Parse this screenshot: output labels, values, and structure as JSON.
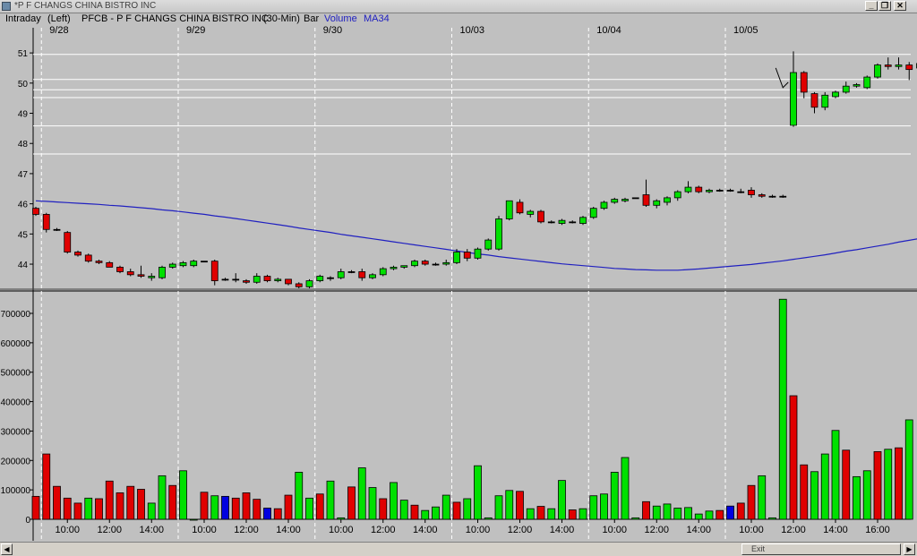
{
  "window": {
    "title": "*P F CHANGS CHINA BISTRO INC",
    "minimize_glyph": "_",
    "restore_glyph": "❐",
    "close_glyph": "✕"
  },
  "infobar": {
    "mode": "Intraday",
    "axis_side": "(Left)",
    "symbol_desc": "PFCB - P F CHANGS CHINA BISTRO INC",
    "interval": "(30-Min)",
    "style": "Bar",
    "volume_label": "Volume",
    "ma_label": "MA34"
  },
  "scrollbar": {
    "left_arrow": "◀",
    "right_arrow": "▶",
    "thumb_text": "Exit"
  },
  "colors": {
    "background": "#c0c0c0",
    "up": "#00e000",
    "down": "#e00000",
    "neutral": "#0000e0",
    "ma_line": "#2020c0",
    "hline": "#ffffff"
  },
  "chart_data": [
    {
      "type": "candlestick",
      "title": "",
      "ylim": [
        43.2,
        51.3
      ],
      "yticks": [
        44,
        45,
        46,
        47,
        48,
        49,
        50,
        51
      ],
      "ytick_labels": [
        "44",
        "45",
        "46",
        "47",
        "48",
        "49",
        "50",
        "51"
      ],
      "grid": false,
      "date_labels": [
        {
          "label": "9/28",
          "bar": 1
        },
        {
          "label": "9/29",
          "bar": 14
        },
        {
          "label": "9/30",
          "bar": 27
        },
        {
          "label": "10/03",
          "bar": 40
        },
        {
          "label": "10/04",
          "bar": 53
        },
        {
          "label": "10/05",
          "bar": 66
        }
      ],
      "horizontal_levels": [
        50.95,
        50.12,
        49.78,
        49.52,
        48.58,
        47.65
      ],
      "annotation": {
        "type": "arrow",
        "text": "",
        "bar": 71,
        "price": 49.85
      },
      "bars": [
        {
          "o": 45.85,
          "h": 45.9,
          "l": 45.6,
          "c": 45.65
        },
        {
          "o": 45.65,
          "h": 45.7,
          "l": 45.05,
          "c": 45.15
        },
        {
          "o": 45.15,
          "h": 45.2,
          "l": 45.1,
          "c": 45.15
        },
        {
          "o": 45.05,
          "h": 45.1,
          "l": 44.35,
          "c": 44.4
        },
        {
          "o": 44.4,
          "h": 44.45,
          "l": 44.25,
          "c": 44.3
        },
        {
          "o": 44.3,
          "h": 44.35,
          "l": 44.05,
          "c": 44.1
        },
        {
          "o": 44.1,
          "h": 44.15,
          "l": 44.0,
          "c": 44.05
        },
        {
          "o": 44.05,
          "h": 44.1,
          "l": 43.9,
          "c": 43.9
        },
        {
          "o": 43.9,
          "h": 43.95,
          "l": 43.7,
          "c": 43.75
        },
        {
          "o": 43.75,
          "h": 43.85,
          "l": 43.6,
          "c": 43.65
        },
        {
          "o": 43.65,
          "h": 43.95,
          "l": 43.55,
          "c": 43.6
        },
        {
          "o": 43.55,
          "h": 43.7,
          "l": 43.45,
          "c": 43.6
        },
        {
          "o": 43.55,
          "h": 43.95,
          "l": 43.5,
          "c": 43.9
        },
        {
          "o": 43.9,
          "h": 44.05,
          "l": 43.85,
          "c": 44.0
        },
        {
          "o": 43.95,
          "h": 44.1,
          "l": 43.9,
          "c": 44.05
        },
        {
          "o": 43.95,
          "h": 44.15,
          "l": 43.9,
          "c": 44.1
        },
        {
          "o": 44.1,
          "h": 44.1,
          "l": 44.1,
          "c": 44.1
        },
        {
          "o": 44.1,
          "h": 44.15,
          "l": 43.3,
          "c": 43.45
        },
        {
          "o": 43.5,
          "h": 43.55,
          "l": 43.45,
          "c": 43.5
        },
        {
          "o": 43.5,
          "h": 43.7,
          "l": 43.4,
          "c": 43.5
        },
        {
          "o": 43.45,
          "h": 43.5,
          "l": 43.35,
          "c": 43.4
        },
        {
          "o": 43.4,
          "h": 43.7,
          "l": 43.35,
          "c": 43.6
        },
        {
          "o": 43.6,
          "h": 43.65,
          "l": 43.4,
          "c": 43.45
        },
        {
          "o": 43.45,
          "h": 43.55,
          "l": 43.4,
          "c": 43.5
        },
        {
          "o": 43.5,
          "h": 43.5,
          "l": 43.3,
          "c": 43.35
        },
        {
          "o": 43.35,
          "h": 43.4,
          "l": 43.2,
          "c": 43.25
        },
        {
          "o": 43.25,
          "h": 43.5,
          "l": 43.2,
          "c": 43.45
        },
        {
          "o": 43.45,
          "h": 43.65,
          "l": 43.4,
          "c": 43.6
        },
        {
          "o": 43.55,
          "h": 43.6,
          "l": 43.45,
          "c": 43.55
        },
        {
          "o": 43.55,
          "h": 43.85,
          "l": 43.5,
          "c": 43.75
        },
        {
          "o": 43.75,
          "h": 43.8,
          "l": 43.7,
          "c": 43.75
        },
        {
          "o": 43.75,
          "h": 43.85,
          "l": 43.45,
          "c": 43.55
        },
        {
          "o": 43.55,
          "h": 43.7,
          "l": 43.5,
          "c": 43.65
        },
        {
          "o": 43.65,
          "h": 43.9,
          "l": 43.6,
          "c": 43.85
        },
        {
          "o": 43.85,
          "h": 43.95,
          "l": 43.8,
          "c": 43.9
        },
        {
          "o": 43.9,
          "h": 43.95,
          "l": 43.85,
          "c": 43.95
        },
        {
          "o": 43.95,
          "h": 44.15,
          "l": 43.9,
          "c": 44.1
        },
        {
          "o": 44.1,
          "h": 44.15,
          "l": 43.95,
          "c": 44.0
        },
        {
          "o": 44.0,
          "h": 44.05,
          "l": 43.95,
          "c": 44.0
        },
        {
          "o": 44.0,
          "h": 44.15,
          "l": 43.95,
          "c": 44.05
        },
        {
          "o": 44.05,
          "h": 44.5,
          "l": 44.0,
          "c": 44.4
        },
        {
          "o": 44.4,
          "h": 44.5,
          "l": 44.1,
          "c": 44.2
        },
        {
          "o": 44.2,
          "h": 44.55,
          "l": 44.15,
          "c": 44.5
        },
        {
          "o": 44.5,
          "h": 44.85,
          "l": 44.45,
          "c": 44.8
        },
        {
          "o": 44.5,
          "h": 45.6,
          "l": 44.45,
          "c": 45.5
        },
        {
          "o": 45.5,
          "h": 46.1,
          "l": 45.45,
          "c": 46.1
        },
        {
          "o": 46.05,
          "h": 46.15,
          "l": 45.65,
          "c": 45.7
        },
        {
          "o": 45.65,
          "h": 45.8,
          "l": 45.55,
          "c": 45.75
        },
        {
          "o": 45.75,
          "h": 45.8,
          "l": 45.35,
          "c": 45.4
        },
        {
          "o": 45.4,
          "h": 45.45,
          "l": 45.35,
          "c": 45.4
        },
        {
          "o": 45.35,
          "h": 45.5,
          "l": 45.3,
          "c": 45.45
        },
        {
          "o": 45.4,
          "h": 45.45,
          "l": 45.35,
          "c": 45.4
        },
        {
          "o": 45.35,
          "h": 45.6,
          "l": 45.3,
          "c": 45.55
        },
        {
          "o": 45.55,
          "h": 45.9,
          "l": 45.5,
          "c": 45.85
        },
        {
          "o": 45.85,
          "h": 46.1,
          "l": 45.8,
          "c": 46.05
        },
        {
          "o": 46.05,
          "h": 46.2,
          "l": 46.0,
          "c": 46.15
        },
        {
          "o": 46.1,
          "h": 46.2,
          "l": 46.05,
          "c": 46.15
        },
        {
          "o": 46.2,
          "h": 46.2,
          "l": 46.2,
          "c": 46.2
        },
        {
          "o": 46.3,
          "h": 46.8,
          "l": 45.9,
          "c": 45.95
        },
        {
          "o": 45.95,
          "h": 46.15,
          "l": 45.85,
          "c": 46.1
        },
        {
          "o": 46.05,
          "h": 46.25,
          "l": 45.95,
          "c": 46.2
        },
        {
          "o": 46.2,
          "h": 46.45,
          "l": 46.1,
          "c": 46.4
        },
        {
          "o": 46.4,
          "h": 46.75,
          "l": 46.35,
          "c": 46.55
        },
        {
          "o": 46.55,
          "h": 46.6,
          "l": 46.35,
          "c": 46.4
        },
        {
          "o": 46.4,
          "h": 46.5,
          "l": 46.35,
          "c": 46.45
        },
        {
          "o": 46.45,
          "h": 46.5,
          "l": 46.4,
          "c": 46.45
        },
        {
          "o": 46.45,
          "h": 46.5,
          "l": 46.4,
          "c": 46.45
        },
        {
          "o": 46.4,
          "h": 46.5,
          "l": 46.35,
          "c": 46.4
        },
        {
          "o": 46.45,
          "h": 46.55,
          "l": 46.2,
          "c": 46.3
        },
        {
          "o": 46.3,
          "h": 46.35,
          "l": 46.2,
          "c": 46.25
        },
        {
          "o": 46.25,
          "h": 46.3,
          "l": 46.2,
          "c": 46.25
        },
        {
          "o": 46.25,
          "h": 46.3,
          "l": 46.2,
          "c": 46.25
        },
        {
          "o": 48.6,
          "h": 51.05,
          "l": 48.55,
          "c": 50.35
        },
        {
          "o": 50.35,
          "h": 50.4,
          "l": 49.5,
          "c": 49.7
        },
        {
          "o": 49.65,
          "h": 49.7,
          "l": 49.0,
          "c": 49.2
        },
        {
          "o": 49.2,
          "h": 49.7,
          "l": 49.1,
          "c": 49.6
        },
        {
          "o": 49.55,
          "h": 49.75,
          "l": 49.5,
          "c": 49.7
        },
        {
          "o": 49.7,
          "h": 50.05,
          "l": 49.65,
          "c": 49.9
        },
        {
          "o": 49.9,
          "h": 50.0,
          "l": 49.85,
          "c": 49.95
        },
        {
          "o": 49.85,
          "h": 50.25,
          "l": 49.8,
          "c": 50.2
        },
        {
          "o": 50.2,
          "h": 50.65,
          "l": 50.15,
          "c": 50.6
        },
        {
          "o": 50.6,
          "h": 50.85,
          "l": 50.45,
          "c": 50.55
        },
        {
          "o": 50.55,
          "h": 50.85,
          "l": 50.45,
          "c": 50.6
        },
        {
          "o": 50.6,
          "h": 50.7,
          "l": 50.1,
          "c": 50.45
        },
        {
          "o": 50.5,
          "h": 50.7,
          "l": 50.15,
          "c": 50.65
        },
        {
          "o": 50.65,
          "h": 50.65,
          "l": 50.65,
          "c": 50.65
        }
      ],
      "series": [
        {
          "type": "line",
          "values": [
            46.1,
            46.08,
            46.06,
            46.04,
            46.02,
            46.0,
            45.98,
            45.95,
            45.93,
            45.9,
            45.87,
            45.84,
            45.8,
            45.77,
            45.73,
            45.69,
            45.65,
            45.6,
            45.56,
            45.51,
            45.46,
            45.41,
            45.36,
            45.31,
            45.26,
            45.2,
            45.15,
            45.1,
            45.05,
            44.99,
            44.94,
            44.89,
            44.84,
            44.79,
            44.74,
            44.69,
            44.64,
            44.59,
            44.54,
            44.49,
            44.44,
            44.39,
            44.34,
            44.3,
            44.25,
            44.21,
            44.17,
            44.13,
            44.09,
            44.05,
            44.01,
            43.98,
            43.95,
            43.92,
            43.89,
            43.86,
            43.84,
            43.82,
            43.81,
            43.8,
            43.8,
            43.8,
            43.82,
            43.84,
            43.87,
            43.9,
            43.93,
            43.96,
            43.99,
            44.03,
            44.07,
            44.11,
            44.16,
            44.21,
            44.26,
            44.31,
            44.37,
            44.43,
            44.48,
            44.54,
            44.6,
            44.66,
            44.73,
            44.79,
            44.85
          ]
        }
      ]
    },
    {
      "type": "bar",
      "title": "",
      "ylim": [
        0,
        770000
      ],
      "yticks": [
        0,
        100000,
        200000,
        300000,
        400000,
        500000,
        600000,
        700000
      ],
      "ytick_labels": [
        "0",
        "100000",
        "200000",
        "300000",
        "400000",
        "500000",
        "600000",
        "700000"
      ],
      "xtick_labels": [
        {
          "label": "10:00",
          "bar": 3
        },
        {
          "label": "12:00",
          "bar": 7
        },
        {
          "label": "14:00",
          "bar": 11
        },
        {
          "label": "10:00",
          "bar": 16
        },
        {
          "label": "12:00",
          "bar": 20
        },
        {
          "label": "14:00",
          "bar": 24
        },
        {
          "label": "10:00",
          "bar": 29
        },
        {
          "label": "12:00",
          "bar": 33
        },
        {
          "label": "14:00",
          "bar": 37
        },
        {
          "label": "10:00",
          "bar": 42
        },
        {
          "label": "12:00",
          "bar": 46
        },
        {
          "label": "14:00",
          "bar": 50
        },
        {
          "label": "10:00",
          "bar": 55
        },
        {
          "label": "12:00",
          "bar": 59
        },
        {
          "label": "14:00",
          "bar": 63
        },
        {
          "label": "10:00",
          "bar": 68
        },
        {
          "label": "12:00",
          "bar": 72
        },
        {
          "label": "14:00",
          "bar": 76
        },
        {
          "label": "16:00",
          "bar": 80
        }
      ],
      "values": [
        78000,
        222000,
        112000,
        72000,
        55000,
        72000,
        70000,
        130000,
        90000,
        112000,
        102000,
        55000,
        148000,
        115000,
        165000,
        0,
        92000,
        80000,
        78000,
        72000,
        90000,
        68000,
        38000,
        36000,
        82000,
        160000,
        72000,
        86000,
        130000,
        5000,
        110000,
        175000,
        108000,
        70000,
        125000,
        65000,
        48000,
        30000,
        42000,
        82000,
        58000,
        70000,
        182000,
        5000,
        80000,
        98000,
        95000,
        36000,
        44000,
        36000,
        132000,
        32000,
        36000,
        80000,
        86000,
        160000,
        210000,
        5000,
        60000,
        45000,
        52000,
        38000,
        40000,
        18000,
        28000,
        30000,
        45000,
        55000,
        115000,
        148000,
        5000,
        748000,
        420000,
        185000,
        162000,
        222000,
        302000,
        235000,
        145000,
        165000,
        230000,
        238000,
        243000,
        338000
      ],
      "bar_colors": [
        "r",
        "r",
        "r",
        "r",
        "r",
        "g",
        "r",
        "r",
        "r",
        "r",
        "r",
        "g",
        "g",
        "r",
        "g",
        "g",
        "r",
        "g",
        "b",
        "r",
        "r",
        "r",
        "b",
        "r",
        "r",
        "g",
        "g",
        "r",
        "g",
        "g",
        "r",
        "g",
        "g",
        "r",
        "g",
        "g",
        "r",
        "g",
        "g",
        "g",
        "r",
        "g",
        "g",
        "g",
        "g",
        "g",
        "r",
        "g",
        "r",
        "g",
        "g",
        "r",
        "g",
        "g",
        "g",
        "g",
        "g",
        "g",
        "r",
        "g",
        "g",
        "g",
        "g",
        "g",
        "g",
        "r",
        "b",
        "r",
        "r",
        "g",
        "g",
        "g",
        "r",
        "r",
        "g",
        "g",
        "g",
        "r",
        "g",
        "g",
        "r",
        "g",
        "r",
        "g"
      ]
    }
  ]
}
